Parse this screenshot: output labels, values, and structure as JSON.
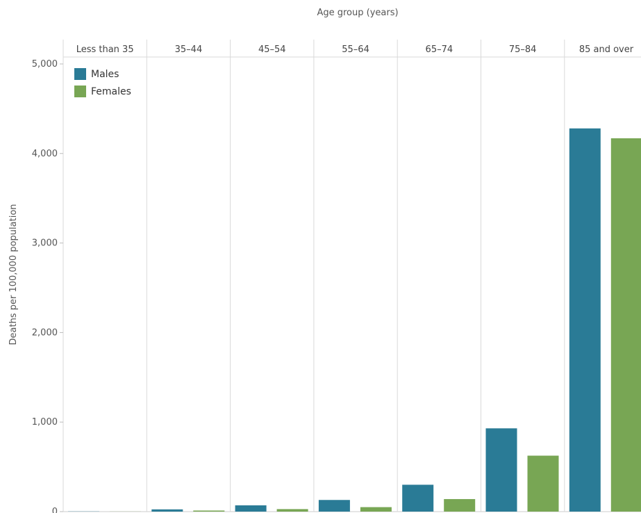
{
  "chart_data": {
    "type": "bar",
    "title": "",
    "column_header_label": "Age group (years)",
    "ylabel": "Deaths per 100,000 population",
    "categories": [
      "Less than 35",
      "35–44",
      "45–54",
      "55–64",
      "65–74",
      "75–84",
      "85 and over"
    ],
    "series": [
      {
        "name": "Males",
        "color": "#2a7b96",
        "values": [
          2,
          25,
          70,
          130,
          300,
          930,
          4280
        ]
      },
      {
        "name": "Females",
        "color": "#78a654",
        "values": [
          1,
          12,
          28,
          50,
          140,
          625,
          4170
        ]
      }
    ],
    "ylim": [
      0,
      5000
    ],
    "yticks": [
      0,
      1000,
      2000,
      3000,
      4000,
      5000
    ],
    "ytick_labels": [
      "0",
      "1,000",
      "2,000",
      "3,000",
      "4,000",
      "5,000"
    ],
    "legend_position": "top-left",
    "grid": false
  }
}
